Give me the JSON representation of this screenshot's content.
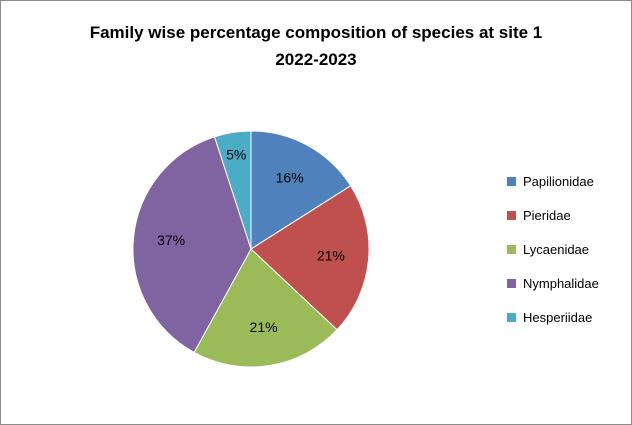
{
  "chart_data": {
    "type": "pie",
    "title_lines": [
      "Family wise percentage composition of species at site 1",
      "2022-2023"
    ],
    "categories": [
      "Papilionidae",
      "Pieridae",
      "Lycaenidae",
      "Nymphalidae",
      "Hesperiidae"
    ],
    "values": [
      16,
      21,
      21,
      37,
      5
    ],
    "data_labels": [
      "16%",
      "21%",
      "21%",
      "37%",
      "5%"
    ],
    "colors": [
      "#4F81BD",
      "#C0504D",
      "#9BBB59",
      "#8064A2",
      "#4BACC6"
    ],
    "start_angle_deg": 0,
    "direction": "clockwise",
    "legend_position": "right"
  }
}
